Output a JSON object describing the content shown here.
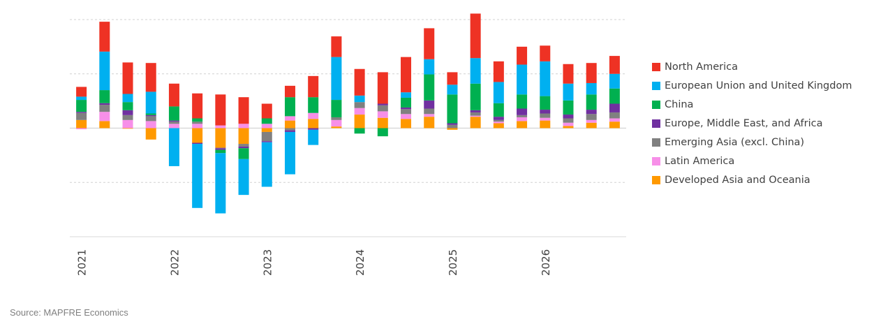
{
  "chart_data": {
    "type": "bar",
    "stacked": true,
    "title": "",
    "xlabel": "",
    "ylabel": "",
    "ylim": [
      -2,
      2
    ],
    "y_tick_labels_shown": false,
    "grid": "horizontal dashed",
    "legend_position": "right",
    "x_tick_labels": [
      "2021",
      "2022",
      "2023",
      "2024",
      "2025",
      "2026"
    ],
    "categories": [
      "2021Q1",
      "2021Q2",
      "2021Q3",
      "2021Q4",
      "2022Q1",
      "2022Q2",
      "2022Q3",
      "2022Q4",
      "2023Q1",
      "2023Q2",
      "2023Q3",
      "2023Q4",
      "2024Q1",
      "2024Q2",
      "2024Q3",
      "2024Q4",
      "2025Q1",
      "2025Q2",
      "2025Q3",
      "2025Q4",
      "2026Q1",
      "2026Q2",
      "2026Q3",
      "2026Q4"
    ],
    "series": [
      {
        "name": "Developed Asia and Oceania",
        "color": "#FF9900",
        "values": [
          0.15,
          0.13,
          -0.01,
          -0.21,
          0,
          -0.27,
          -0.36,
          -0.29,
          -0.07,
          0.14,
          0.17,
          0.03,
          0.25,
          0.19,
          0.17,
          0.21,
          -0.03,
          0.21,
          0.09,
          0.13,
          0.14,
          0.04,
          0.1,
          0.12
        ]
      },
      {
        "name": "Latin America",
        "color": "#F78FE8",
        "values": [
          -0.02,
          0.17,
          0.15,
          0.13,
          0.08,
          0.08,
          0.05,
          0.08,
          0.08,
          0.08,
          0.11,
          0.12,
          0.12,
          0.12,
          0.09,
          0.05,
          0,
          0.02,
          0.03,
          0.07,
          0.05,
          0.06,
          0.05,
          0.06
        ]
      },
      {
        "name": "Emerging Asia (excl. China)",
        "color": "#808080",
        "values": [
          0.13,
          0.13,
          0.09,
          0.09,
          0.04,
          0.04,
          -0.01,
          -0.05,
          -0.17,
          -0.04,
          0,
          0.05,
          0.11,
          0.11,
          0.09,
          0.1,
          0.06,
          0.06,
          0.03,
          0.04,
          0.08,
          0.08,
          0.11,
          0.11
        ]
      },
      {
        "name": "Europe, Middle East, and Africa",
        "color": "#7030A0",
        "values": [
          0.02,
          0.03,
          0.09,
          0.02,
          0.02,
          -0.02,
          -0.03,
          -0.03,
          -0.02,
          -0.03,
          -0.03,
          0,
          0,
          0.03,
          0.03,
          0.15,
          0.03,
          0.04,
          0.06,
          0.12,
          0.07,
          0.07,
          0.08,
          0.16
        ]
      },
      {
        "name": "China",
        "color": "#00B050",
        "values": [
          0.22,
          0.24,
          0.15,
          0.03,
          0.26,
          0.06,
          -0.06,
          -0.2,
          0.1,
          0.35,
          0.29,
          0.32,
          -0.1,
          -0.15,
          0.18,
          0.48,
          0.53,
          0.49,
          0.25,
          0.26,
          0.25,
          0.26,
          0.28,
          0.28
        ]
      },
      {
        "name": "European Union and United Kingdom",
        "color": "#00B0F0",
        "values": [
          0.06,
          0.71,
          0.15,
          0.4,
          -0.7,
          -1.18,
          -1.11,
          -0.66,
          -0.82,
          -0.78,
          -0.28,
          0.79,
          0.12,
          0,
          0.1,
          0.28,
          0.18,
          0.47,
          0.39,
          0.55,
          0.64,
          0.31,
          0.21,
          0.27
        ]
      },
      {
        "name": "North America",
        "color": "#EE3224",
        "values": [
          0.18,
          0.55,
          0.58,
          0.53,
          0.42,
          0.46,
          0.57,
          0.49,
          0.27,
          0.21,
          0.39,
          0.38,
          0.49,
          0.58,
          0.65,
          0.57,
          0.23,
          0.82,
          0.38,
          0.33,
          0.29,
          0.36,
          0.37,
          0.33
        ]
      }
    ],
    "legend_order": [
      "North America",
      "European Union and United Kingdom",
      "China",
      "Europe, Middle East, and Africa",
      "Emerging Asia (excl. China)",
      "Latin America",
      "Developed Asia and Oceania"
    ]
  },
  "source": "Source: MAPFRE Economics"
}
